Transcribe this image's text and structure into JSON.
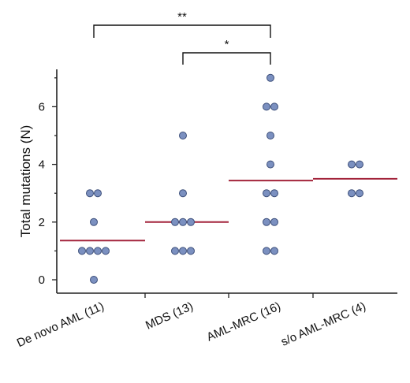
{
  "chart_data": {
    "type": "scatter",
    "ylabel": "Total mutations (N)",
    "ylim": [
      -0.4,
      7.4
    ],
    "yticks": [
      0,
      2,
      4,
      6
    ],
    "categories": [
      "De novo AML (11)",
      "MDS (13)",
      "AML-MRC (16)",
      "s/o AML-MRC (4)"
    ],
    "groups": [
      {
        "name": "De novo AML (11)",
        "values": [
          0,
          1,
          1,
          1,
          1,
          2,
          3,
          3
        ],
        "mean": 1.36
      },
      {
        "name": "MDS (13)",
        "values": [
          1,
          1,
          1,
          2,
          2,
          2,
          3,
          5
        ],
        "mean": 2.0
      },
      {
        "name": "AML-MRC (16)",
        "values": [
          1,
          1,
          2,
          2,
          3,
          3,
          4,
          5,
          6,
          6,
          7
        ],
        "mean": 3.44
      },
      {
        "name": "s/o AML-MRC (4)",
        "values": [
          3,
          3,
          4,
          4
        ],
        "mean": 3.5
      }
    ],
    "significance": [
      {
        "from": "De novo AML (11)",
        "to": "AML-MRC (16)",
        "label": "**"
      },
      {
        "from": "MDS (13)",
        "to": "AML-MRC (16)",
        "label": "*"
      }
    ],
    "colors": {
      "point_fill": "#7b90c0",
      "point_stroke": "#3d4f7a",
      "mean_line": "#a3243b"
    }
  }
}
